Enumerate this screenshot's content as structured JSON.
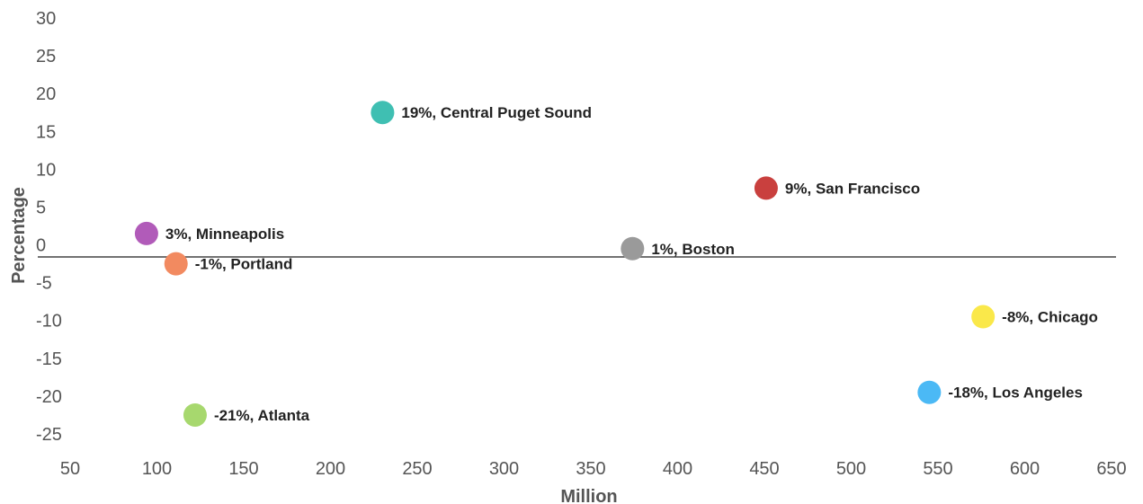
{
  "chart_data": {
    "type": "scatter",
    "title": "",
    "xlabel": "Million",
    "ylabel": "Percentage",
    "xlim": [
      50,
      650
    ],
    "ylim": [
      -25,
      30
    ],
    "x_ticks": [
      50,
      100,
      150,
      200,
      250,
      300,
      350,
      400,
      450,
      500,
      550,
      600,
      650
    ],
    "y_ticks": [
      30,
      25,
      20,
      15,
      10,
      5,
      0,
      -5,
      -10,
      -15,
      -20,
      -25
    ],
    "grid": false,
    "legend": "none",
    "points": [
      {
        "x": 230,
        "y": 17.5,
        "label": "19%, Central Puget Sound",
        "color": "#3FBFB2"
      },
      {
        "x": 451,
        "y": 7.5,
        "label": "9%, San Francisco",
        "color": "#C9403E"
      },
      {
        "x": 94,
        "y": 1.5,
        "label": "3%, Minneapolis",
        "color": "#B15BB9"
      },
      {
        "x": 374,
        "y": -0.5,
        "label": "1%, Boston",
        "color": "#9A9A9A"
      },
      {
        "x": 111,
        "y": -2.5,
        "label": "-1%, Portland",
        "color": "#F28A60"
      },
      {
        "x": 576,
        "y": -9.5,
        "label": "-8%, Chicago",
        "color": "#FAE84A"
      },
      {
        "x": 545,
        "y": -19.5,
        "label": "-18%, Los Angeles",
        "color": "#4BB9F5"
      },
      {
        "x": 122,
        "y": -22.5,
        "label": "-21%, Atlanta",
        "color": "#A7D86E"
      }
    ]
  }
}
